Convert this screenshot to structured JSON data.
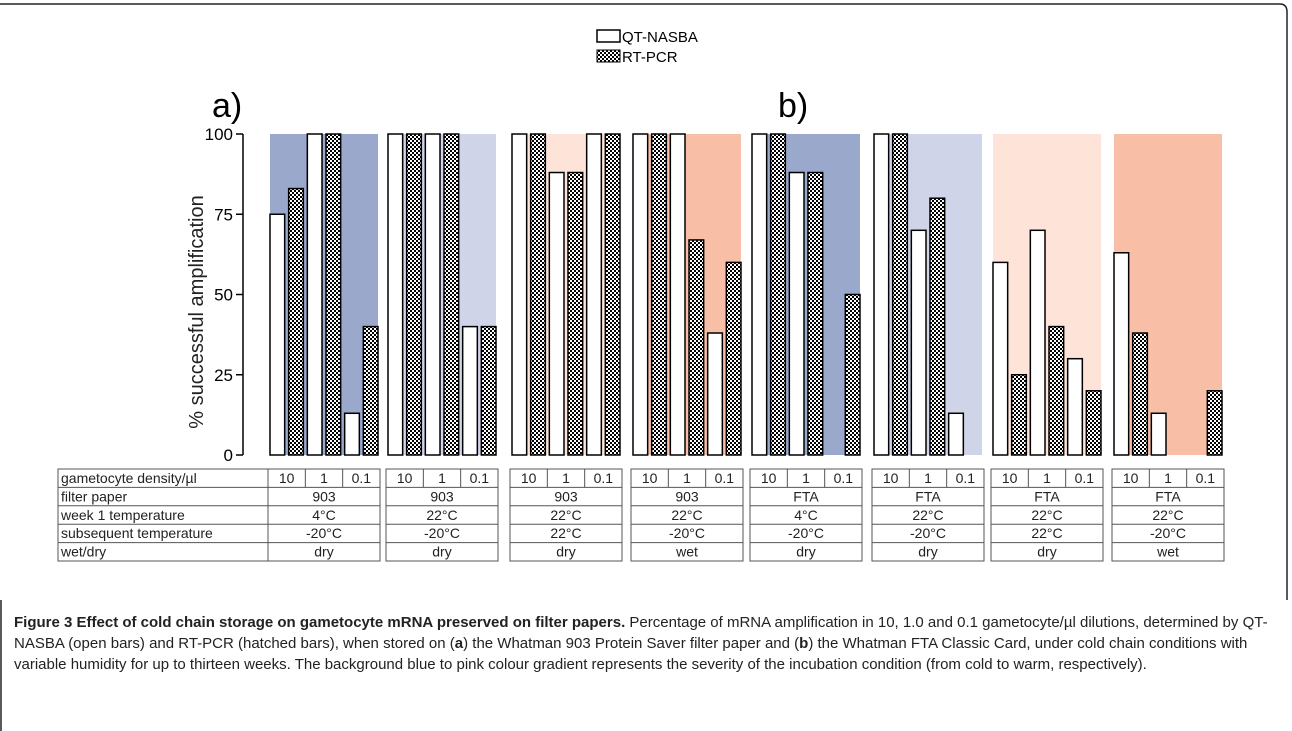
{
  "chart_data": {
    "type": "bar",
    "ylabel": "% successful amplification",
    "ylim": [
      0,
      100
    ],
    "yticks": [
      0,
      25,
      50,
      75,
      100
    ],
    "grid": false,
    "legend_position": "top-center",
    "legend": [
      "QT-NASBA",
      "RT-PCR"
    ],
    "panel_labels": [
      "a)",
      "b)"
    ],
    "panel_group_starts": [
      0,
      4
    ],
    "colors": {
      "dark_blue": "#9aa8cc",
      "light_blue": "#cfd4e8",
      "light_pink": "#fde3d8",
      "salmon": "#f9bfa6"
    },
    "categories": [
      "10",
      "1",
      "0.1"
    ],
    "groups": [
      {
        "panel": "a)",
        "bg": "dark_blue",
        "nasba": [
          75,
          100,
          13
        ],
        "rtpcr": [
          83,
          100,
          40
        ]
      },
      {
        "panel": "a)",
        "bg": "light_blue",
        "nasba": [
          100,
          100,
          40
        ],
        "rtpcr": [
          100,
          100,
          40
        ]
      },
      {
        "panel": "a)",
        "bg": "light_pink",
        "nasba": [
          100,
          88,
          100
        ],
        "rtpcr": [
          100,
          88,
          100
        ]
      },
      {
        "panel": "a)",
        "bg": "salmon",
        "nasba": [
          100,
          100,
          38
        ],
        "rtpcr": [
          100,
          67,
          60
        ]
      },
      {
        "panel": "b)",
        "bg": "dark_blue",
        "nasba": [
          100,
          88,
          0
        ],
        "rtpcr": [
          100,
          88,
          50
        ]
      },
      {
        "panel": "b)",
        "bg": "light_blue",
        "nasba": [
          100,
          70,
          13
        ],
        "rtpcr": [
          100,
          80,
          0
        ]
      },
      {
        "panel": "b)",
        "bg": "light_pink",
        "nasba": [
          60,
          70,
          30
        ],
        "rtpcr": [
          25,
          40,
          20
        ]
      },
      {
        "panel": "b)",
        "bg": "salmon",
        "nasba": [
          63,
          13,
          0
        ],
        "rtpcr": [
          38,
          0,
          20
        ]
      }
    ],
    "table": {
      "row_labels": [
        "gametocyte density/µl",
        "filter paper",
        "week 1 temperature",
        "subsequent temperature",
        "wet/dry"
      ],
      "density_values": [
        "10",
        "1",
        "0.1"
      ],
      "columns": [
        {
          "filter_paper": "903",
          "week1": "4°C",
          "subsequent": "-20°C",
          "wetdry": "dry"
        },
        {
          "filter_paper": "903",
          "week1": "22°C",
          "subsequent": "-20°C",
          "wetdry": "dry"
        },
        {
          "filter_paper": "903",
          "week1": "22°C",
          "subsequent": "22°C",
          "wetdry": "dry"
        },
        {
          "filter_paper": "903",
          "week1": "22°C",
          "subsequent": "-20°C",
          "wetdry": "wet"
        },
        {
          "filter_paper": "FTA",
          "week1": "4°C",
          "subsequent": "-20°C",
          "wetdry": "dry"
        },
        {
          "filter_paper": "FTA",
          "week1": "22°C",
          "subsequent": "-20°C",
          "wetdry": "dry"
        },
        {
          "filter_paper": "FTA",
          "week1": "22°C",
          "subsequent": "22°C",
          "wetdry": "dry"
        },
        {
          "filter_paper": "FTA",
          "week1": "22°C",
          "subsequent": "-20°C",
          "wetdry": "wet"
        }
      ]
    }
  },
  "caption": {
    "title": "Figure 3 Effect of cold chain storage on gametocyte mRNA preserved on filter papers.",
    "text_1": " Percentage of mRNA amplification in 10, 1.0 and 0.1 gametocyte/µl dilutions, determined by QT-NASBA (open bars) and RT-PCR (hatched bars), when stored on (",
    "a": "a",
    "text_2": ") the Whatman 903 Protein Saver filter paper and (",
    "b": "b",
    "text_3": ") the Whatman FTA Classic Card, under cold chain conditions with variable humidity for up to thirteen weeks. The background blue to pink colour gradient represents the severity of the incubation condition (from cold to warm, respectively)."
  }
}
